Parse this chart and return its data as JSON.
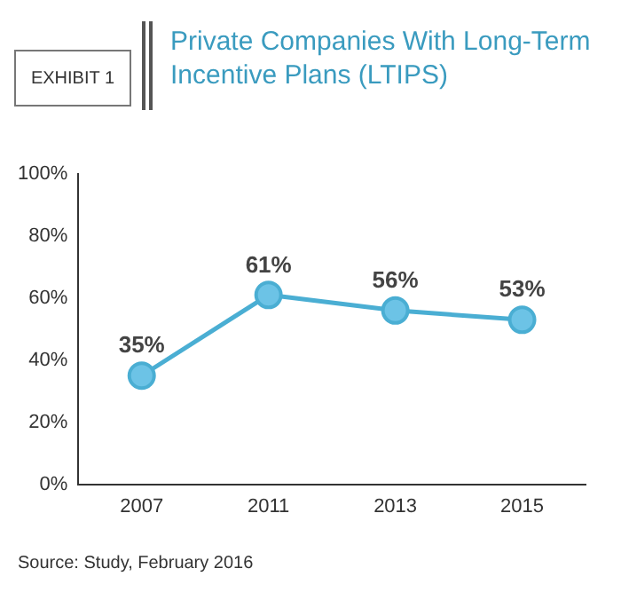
{
  "chart_data": {
    "type": "line",
    "title": "Private Companies With Long-Term Incentive Plans (LTIPS)",
    "annotations": [
      "EXHIBIT 1",
      "Source: Study, February 2016"
    ],
    "categories": [
      "2007",
      "2011",
      "2013",
      "2015"
    ],
    "series": [
      {
        "color": "#4aaed3",
        "values": [
          35,
          61,
          56,
          53
        ],
        "value_labels": [
          "35%",
          "61%",
          "56%",
          "53%"
        ]
      }
    ],
    "ylim": [
      0,
      100
    ],
    "yticks": [
      {
        "value": 0,
        "label": "0%"
      },
      {
        "value": 20,
        "label": "20%"
      },
      {
        "value": 40,
        "label": "40%"
      },
      {
        "value": 60,
        "label": "60%"
      },
      {
        "value": 80,
        "label": "80%"
      },
      {
        "value": 100,
        "label": "100%"
      }
    ],
    "grid": false,
    "legend": false,
    "marker": "circle",
    "line_style": "solid"
  }
}
